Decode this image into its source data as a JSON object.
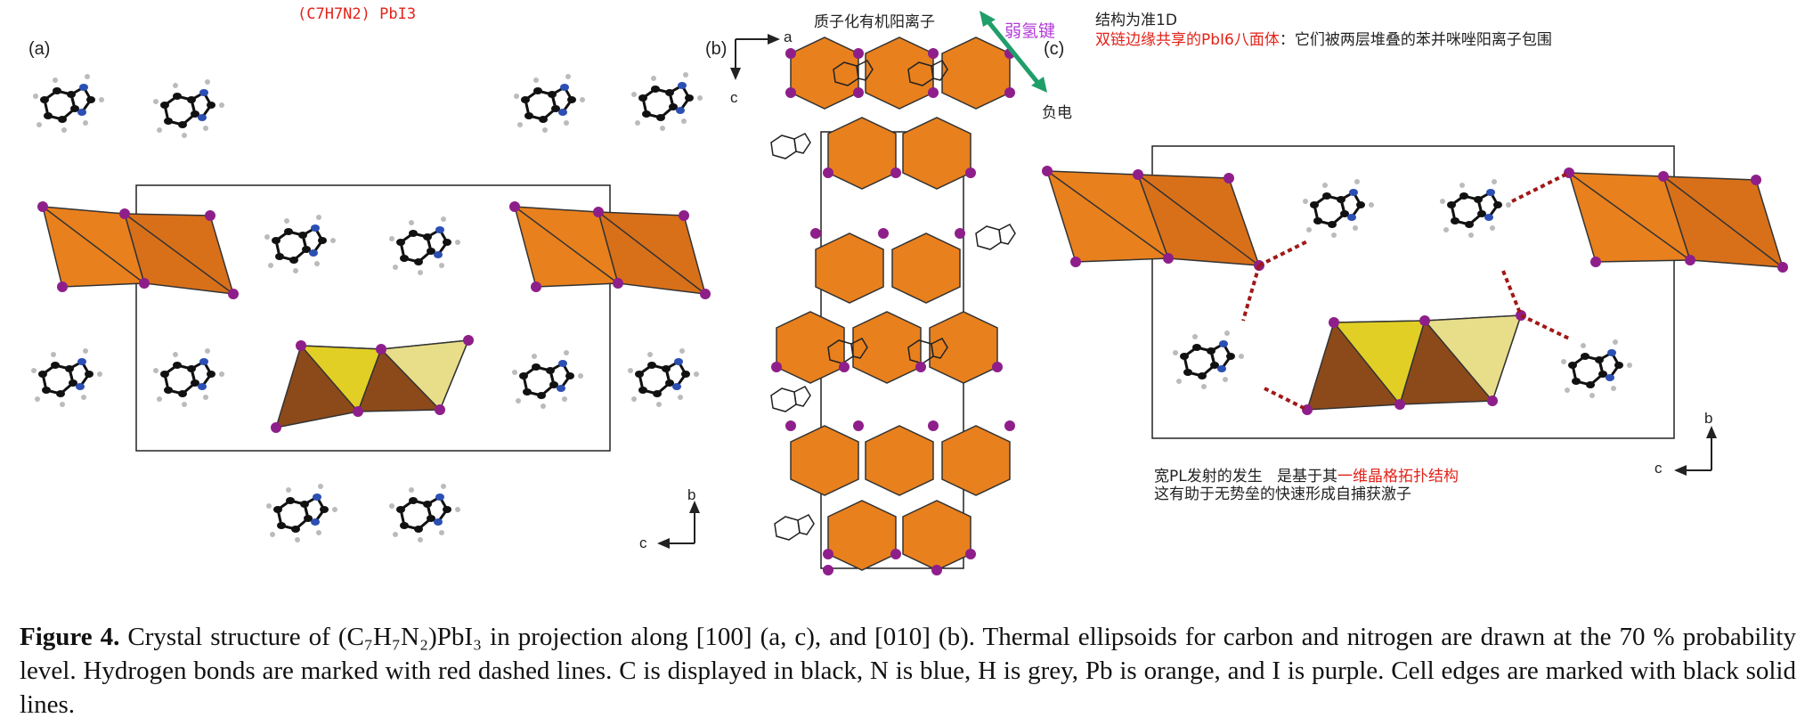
{
  "formula_label": "(C7H7N2) PbI3",
  "panels": {
    "a": "(a)",
    "b": "(b)",
    "c": "(c)"
  },
  "axes": {
    "a_panel": {
      "vertical": "b",
      "horizontal": "c"
    },
    "b_panel": {
      "horizontal": "a",
      "vertical": "c"
    },
    "c_panel": {
      "vertical": "b",
      "horizontal": "c"
    }
  },
  "annotations": {
    "cation": "质子化有机阳离子",
    "weak_h_bond": "弱氢键",
    "negative": "负电",
    "quasi_1d": "结构为准1D",
    "octahedra_red": "双链边缘共享的PbI6八面体",
    "octahedra_black": "：它们被两层堆叠的苯并咪唑阳离子包围",
    "pl_line1_a": "宽PL发射的发生",
    "pl_line1_b": "是基于其",
    "pl_line1_red": "一维晶格拓扑结构",
    "pl_line2": "这有助于无势垒的快速形成自捕获激子"
  },
  "colors": {
    "pb_orange": "#e8801e",
    "iodine_purple": "#8e1f8a",
    "nitrogen_blue": "#2b4fb3",
    "carbon_black": "#111111",
    "hbond_red": "#a01818",
    "arrow_green": "#1f9e6a",
    "weak_bond_magenta": "#b13ad6",
    "highlight_red": "#e2231a"
  },
  "caption": {
    "lead": "Figure 4.",
    "text": " Crystal structure of (C₇H₇N₂)PbI₃ in projection along [100] (a, c), and [010] (b). Thermal ellipsoids for carbon and nitrogen are drawn at the 70 % probability level. Hydrogen bonds are marked with red dashed lines. C is displayed in black, N is blue, H is grey, Pb is orange, and I is purple. Cell edges are marked with black solid lines."
  }
}
